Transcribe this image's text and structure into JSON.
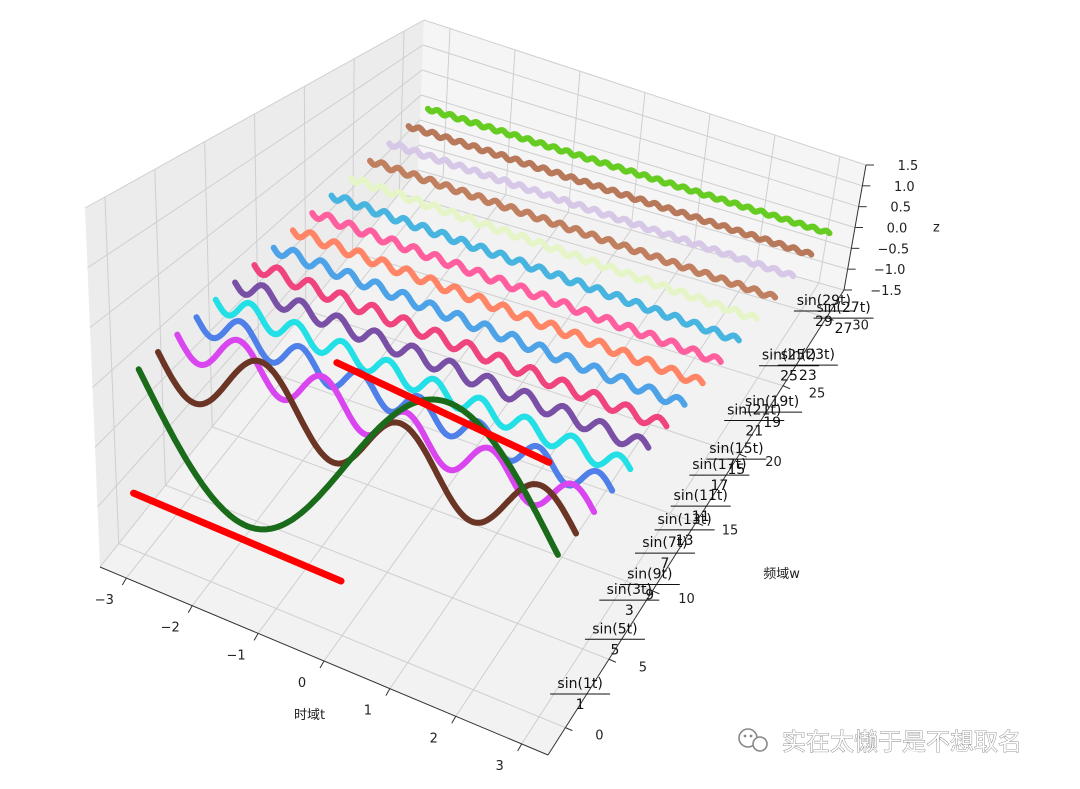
{
  "chart_data": {
    "type": "line",
    "projection": "3d",
    "xlabel": "时域t",
    "ylabel": "频域w",
    "zlabel": "z",
    "xlim": [
      -3.4,
      3.4
    ],
    "ylim": [
      -2,
      32
    ],
    "zlim": [
      -1.5,
      1.5
    ],
    "xticks": [
      "−3",
      "−2",
      "−1",
      "0",
      "1",
      "2",
      "3"
    ],
    "xtick_values": [
      -3,
      -2,
      -1,
      0,
      1,
      2,
      3
    ],
    "yticks": [
      "0",
      "5",
      "10",
      "15",
      "20",
      "25",
      "30"
    ],
    "ytick_values": [
      0,
      5,
      10,
      15,
      20,
      25,
      30
    ],
    "zticks": [
      "−1.5",
      "−1.0",
      "−0.5",
      "0.0",
      "0.5",
      "1.0",
      "1.5"
    ],
    "ztick_values": [
      -1.5,
      -1.0,
      -0.5,
      0.0,
      0.5,
      1.0,
      1.5
    ],
    "grid": true,
    "series": [
      {
        "k": 1,
        "amplitude": 1.0,
        "color": "#1a6b1a",
        "label_fn": "sin(1t)",
        "label_den": "1"
      },
      {
        "k": 3,
        "amplitude": 0.333,
        "color": "#6b3526",
        "label_fn": "sin(3t)",
        "label_den": "3"
      },
      {
        "k": 5,
        "amplitude": 0.2,
        "color": "#d946ef",
        "label_fn": "sin(5t)",
        "label_den": "5"
      },
      {
        "k": 7,
        "amplitude": 0.143,
        "color": "#4f7fe8",
        "label_fn": "sin(7t)",
        "label_den": "7"
      },
      {
        "k": 9,
        "amplitude": 0.111,
        "color": "#22e0e6",
        "label_fn": "sin(9t)",
        "label_den": "9"
      },
      {
        "k": 11,
        "amplitude": 0.0909,
        "color": "#7a4fa6",
        "label_fn": "sin(11t)",
        "label_den": "11"
      },
      {
        "k": 13,
        "amplitude": 0.0769,
        "color": "#f0447e",
        "label_fn": "sin(13t)",
        "label_den": "13"
      },
      {
        "k": 15,
        "amplitude": 0.0667,
        "color": "#4ea3e8",
        "label_fn": "sin(15t)",
        "label_den": "15"
      },
      {
        "k": 17,
        "amplitude": 0.0588,
        "color": "#ff8566",
        "label_fn": "sin(17t)",
        "label_den": "17"
      },
      {
        "k": 19,
        "amplitude": 0.0526,
        "color": "#ff5f9e",
        "label_fn": "sin(19t)",
        "label_den": "19"
      },
      {
        "k": 21,
        "amplitude": 0.0476,
        "color": "#48b4e0",
        "label_fn": "sin(21t)",
        "label_den": "21"
      },
      {
        "k": 23,
        "amplitude": 0.0435,
        "color": "#e6f5c8",
        "label_fn": "sin(23t)",
        "label_den": "23"
      },
      {
        "k": 25,
        "amplitude": 0.04,
        "color": "#c08060",
        "label_fn": "sin(25t)",
        "label_den": "25"
      },
      {
        "k": 27,
        "amplitude": 0.037,
        "color": "#d6c8e6",
        "label_fn": "sin(27t)",
        "label_den": "27"
      },
      {
        "k": 29,
        "amplitude": 0.0345,
        "color": "#b8795a",
        "label_fn": "sin(29t)",
        "label_den": "29"
      },
      {
        "k": 31,
        "amplitude": 0.0323,
        "color": "#66cc22",
        "label_fn": "",
        "label_den": ""
      }
    ],
    "reference_lines": [
      {
        "name": "square-wave-low",
        "x": [
          -3.14,
          0
        ],
        "w": 0,
        "z": -1.0,
        "color": "#ff0000"
      },
      {
        "name": "square-wave-high",
        "x": [
          0,
          3.14
        ],
        "w": 0,
        "z": 1.0,
        "color": "#ff0000"
      }
    ]
  },
  "watermark": {
    "text": "实在太懒于是不想取名",
    "icon": "wechat-icon"
  }
}
